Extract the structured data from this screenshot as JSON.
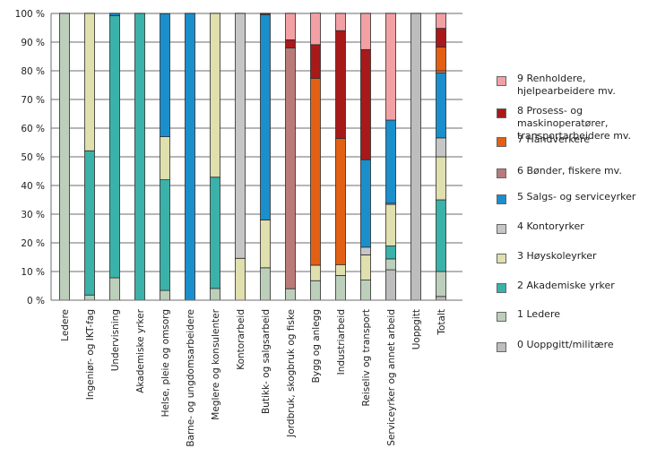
{
  "chart_data": {
    "type": "bar",
    "stacked": true,
    "title": "",
    "xlabel": "",
    "ylabel": "",
    "ylim": [
      0,
      100
    ],
    "yticks": [
      "0 %",
      "10 %",
      "20 %",
      "30 %",
      "40 %",
      "50 %",
      "60 %",
      "70 %",
      "80 %",
      "90 %",
      "100 %"
    ],
    "grid": true,
    "legend_position": "right",
    "categories": [
      "Ledere",
      "Ingeniør- og IKT-fag",
      "Undervisning",
      "Akademiske yrker",
      "Helse, pleie og omsorg",
      "Barne- og ungdomsarbeidere",
      "Meglere og konsulenter",
      "Kontorarbeid",
      "Butikk- og salgsarbeid",
      "Jordbruk, skogbruk og fiske",
      "Bygg og anlegg",
      "Industriarbeid",
      "Reiseliv og transport",
      "Serviceyrker og annet arbeid",
      "Uoppgitt",
      "Totalt"
    ],
    "series": [
      {
        "name": "0 Uoppgitt/militære",
        "color": "#bdbdbd",
        "values": [
          0,
          0,
          0,
          0,
          0,
          0,
          0,
          0,
          0,
          0,
          0,
          0,
          0,
          10.6,
          100,
          1.3
        ]
      },
      {
        "name": "1 Ledere",
        "color": "#bccfbb",
        "values": [
          100,
          1.8,
          7.8,
          0,
          3.4,
          0,
          4.1,
          0,
          11.3,
          4.0,
          6.8,
          8.6,
          7.0,
          3.8,
          0,
          8.7
        ]
      },
      {
        "name": "2 Akademiske yrker",
        "color": "#3ab2aa",
        "values": [
          0,
          50.3,
          91.4,
          100,
          38.6,
          0,
          38.8,
          0,
          0,
          0,
          0,
          0,
          0,
          4.5,
          0,
          25.0
        ]
      },
      {
        "name": "3 Høyskoleyrker",
        "color": "#e0dfae",
        "values": [
          0,
          47.9,
          0,
          0,
          15.0,
          0,
          57.1,
          14.6,
          16.7,
          0,
          5.4,
          3.8,
          8.8,
          14.5,
          0,
          15.0
        ]
      },
      {
        "name": "4 Kontoryrker",
        "color": "#c6c6c6",
        "values": [
          0,
          0,
          0,
          0,
          0,
          0,
          0,
          85.4,
          0,
          0,
          0,
          0,
          2.7,
          0.4,
          0,
          6.6
        ]
      },
      {
        "name": " 5 Salgs- og serviceyrker",
        "color": "#1a8fcc",
        "values": [
          0,
          0,
          0.8,
          0,
          42.9,
          100,
          0,
          0,
          71.6,
          0,
          0,
          0,
          30.5,
          29.0,
          0,
          22.6
        ]
      },
      {
        "name": "6 Bønder, fiskere mv.",
        "color": "#b97a78",
        "values": [
          0,
          0,
          0,
          0,
          0,
          0,
          0,
          0,
          0,
          84.0,
          0,
          0,
          0,
          0,
          0,
          0.8
        ]
      },
      {
        "name": "7 Håndverkere",
        "color": "#e35f14",
        "values": [
          0,
          0,
          0,
          0,
          0,
          0,
          0,
          0,
          0,
          0,
          65.2,
          44.0,
          0,
          0,
          0,
          8.3
        ]
      },
      {
        "name": "8 Prosess- og maskinoperatører, transportarbeidere mv.",
        "color": "#a8191a",
        "values": [
          0,
          0,
          0,
          0,
          0,
          0,
          0,
          0,
          0.4,
          2.8,
          11.7,
          37.6,
          38.4,
          0,
          0,
          6.5
        ]
      },
      {
        "name": "9 Renholdere, hjelpearbeidere mv.",
        "color": "#f3a0a4",
        "values": [
          0,
          0,
          0,
          0,
          0,
          0,
          0,
          0,
          0,
          9.2,
          11.0,
          6.0,
          12.6,
          37.2,
          0,
          5.2
        ]
      }
    ],
    "legend_order": [
      9,
      8,
      7,
      6,
      5,
      4,
      3,
      2,
      1,
      0
    ],
    "legend_labels": {
      "9": [
        "9 Renholdere, hjelpearbeidere mv."
      ],
      "8": [
        "8 Prosess- og maskinoperatører,",
        "transportarbeidere mv."
      ],
      "7": [
        "7 Håndverkere"
      ],
      "6": [
        "6 Bønder, fiskere mv."
      ],
      "5": [
        " 5 Salgs- og serviceyrker"
      ],
      "4": [
        "4 Kontoryrker"
      ],
      "3": [
        "3 Høyskoleyrker"
      ],
      "2": [
        "2 Akademiske yrker"
      ],
      "1": [
        "1 Ledere"
      ],
      "0": [
        "0 Uoppgitt/militære"
      ]
    }
  }
}
